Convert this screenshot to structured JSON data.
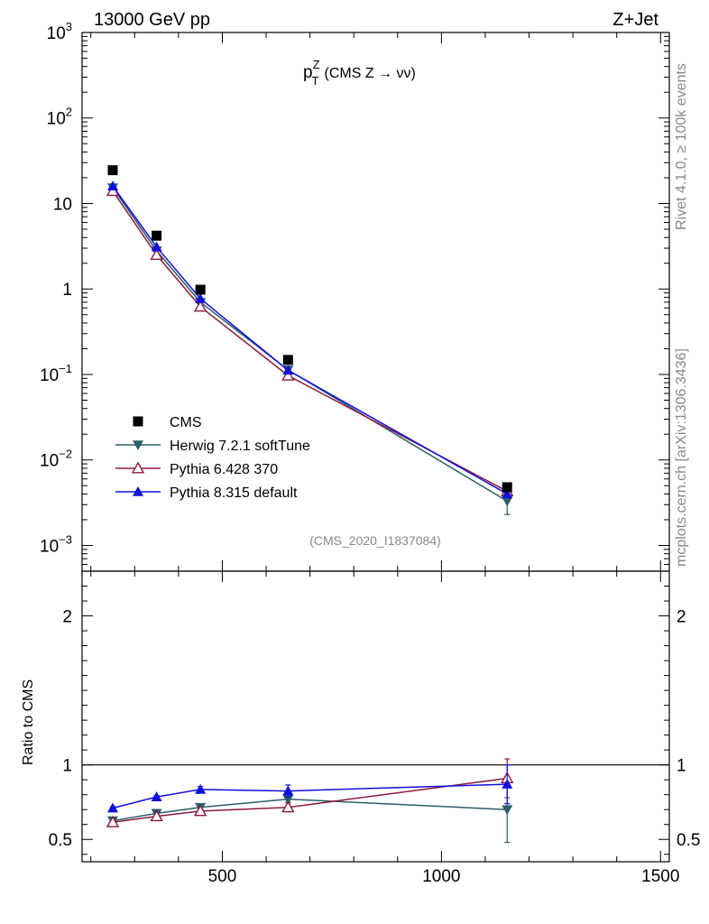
{
  "header": {
    "left": "13000 GeV pp",
    "right": "Z+Jet"
  },
  "side_labels": {
    "rivet": "Rivet 4.1.0, ≥ 100k events",
    "mcplots": "mcplots.cern.ch [arXiv:1306.3436]"
  },
  "watermark": "(CMS_2020_I1837084)",
  "colors": {
    "cms": "#000000",
    "herwig": "#2b5e6b",
    "pythia6": "#8b1a3a",
    "pythia8": "#1010dd"
  },
  "chart_data": [
    {
      "type": "scatter",
      "title_main": "p",
      "title_sup": "Z",
      "title_sub": "T",
      "title_rest": "(CMS Z → νν)",
      "yscale": "log",
      "ylim": [
        0.0005,
        1000
      ],
      "xlim": [
        180,
        1520
      ],
      "y_ticks": [
        {
          "value": 1000,
          "base": "10",
          "exp": "3"
        },
        {
          "value": 100,
          "base": "10",
          "exp": "2"
        },
        {
          "value": 10,
          "base": "10",
          "exp": ""
        },
        {
          "value": 1,
          "base": "1",
          "exp": ""
        },
        {
          "value": 0.1,
          "base": "10",
          "exp": "−1"
        },
        {
          "value": 0.01,
          "base": "10",
          "exp": "−2"
        },
        {
          "value": 0.001,
          "base": "10",
          "exp": "−3"
        }
      ],
      "x": [
        250,
        350,
        450,
        650,
        1150
      ],
      "legend_position": "bottom-left",
      "series": [
        {
          "name": "CMS",
          "key": "cms",
          "marker": "square",
          "values": [
            24.5,
            4.2,
            0.98,
            0.148,
            0.0048
          ]
        },
        {
          "name": "Herwig 7.2.1 softTune",
          "key": "herwig",
          "marker": "triangle-down",
          "values": [
            15.3,
            2.8,
            0.7,
            0.113,
            0.0033
          ],
          "errors": [
            null,
            null,
            null,
            null,
            0.001
          ]
        },
        {
          "name": "Pythia 6.428 370",
          "key": "pythia6",
          "marker": "triangle-up-open",
          "values": [
            14.0,
            2.5,
            0.62,
            0.097,
            0.0043
          ]
        },
        {
          "name": "Pythia 8.315 default",
          "key": "pythia8",
          "marker": "triangle-up",
          "values": [
            16.0,
            3.1,
            0.77,
            0.112,
            0.004
          ]
        }
      ]
    },
    {
      "type": "scatter",
      "ylabel": "Ratio to CMS",
      "ylim": [
        0.35,
        2.3
      ],
      "xlim": [
        180,
        1520
      ],
      "y_ticks": [
        0.5,
        1,
        2
      ],
      "y_tick_labels": [
        "0.5",
        "1",
        "2"
      ],
      "x_ticks": [
        500,
        1000,
        1500
      ],
      "x_tick_labels": [
        "500",
        "1000",
        "1500"
      ],
      "reference_line": 1,
      "x": [
        250,
        350,
        450,
        650,
        1150
      ],
      "series": [
        {
          "name": "Herwig 7.2.1 softTune",
          "key": "herwig",
          "marker": "triangle-down",
          "values": [
            0.625,
            0.675,
            0.715,
            0.77,
            0.7
          ],
          "errors": [
            0.01,
            0.01,
            0.015,
            0.02,
            0.22
          ]
        },
        {
          "name": "Pythia 6.428 370",
          "key": "pythia6",
          "marker": "triangle-up-open",
          "values": [
            0.615,
            0.655,
            0.69,
            0.715,
            0.91
          ],
          "errors": [
            0.01,
            0.01,
            0.015,
            0.03,
            0.13
          ]
        },
        {
          "name": "Pythia 8.315 default",
          "key": "pythia8",
          "marker": "triangle-up",
          "values": [
            0.71,
            0.785,
            0.835,
            0.825,
            0.87
          ],
          "errors": [
            0.01,
            0.01,
            0.02,
            0.04,
            0.13
          ]
        }
      ]
    }
  ]
}
